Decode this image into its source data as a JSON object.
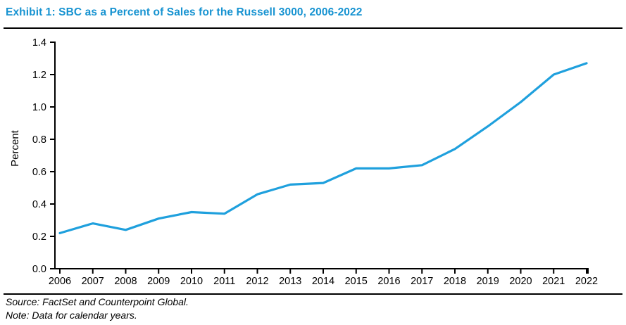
{
  "header": {
    "title": "Exhibit 1: SBC as a Percent of Sales for the Russell 3000, 2006-2022"
  },
  "footer": {
    "source": "Source: FactSet and Counterpoint Global.",
    "note": "Note: Data for calendar years."
  },
  "colors": {
    "title_blue": "#1793d1",
    "line_blue": "#1fa0dd",
    "axis_black": "#000000"
  },
  "chart_data": {
    "type": "line",
    "title": "",
    "xlabel": "",
    "ylabel": "Percent",
    "x": [
      2006,
      2007,
      2008,
      2009,
      2010,
      2011,
      2012,
      2013,
      2014,
      2015,
      2016,
      2017,
      2018,
      2019,
      2020,
      2021,
      2022
    ],
    "values": [
      0.22,
      0.28,
      0.24,
      0.31,
      0.35,
      0.34,
      0.46,
      0.52,
      0.53,
      0.62,
      0.62,
      0.64,
      0.74,
      0.88,
      1.03,
      1.2,
      1.27
    ],
    "series_name": "SBC as a percent of sales",
    "ylim": [
      0.0,
      1.4
    ],
    "yticks": [
      0.0,
      0.2,
      0.4,
      0.6,
      0.8,
      1.0,
      1.2,
      1.4
    ],
    "grid": false,
    "legend_position": "none",
    "line_color": "#1fa0dd"
  }
}
